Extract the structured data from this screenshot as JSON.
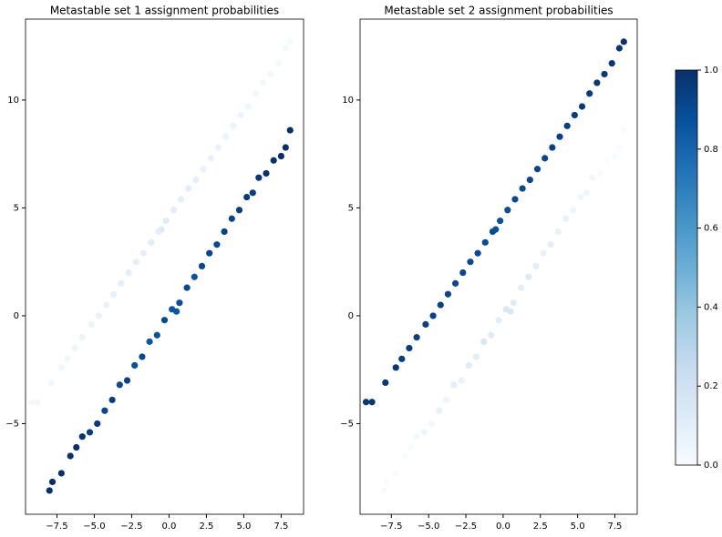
{
  "chart_data": [
    {
      "type": "scatter",
      "title": "Metastable set 1 assignment probabilities",
      "x": [
        -8,
        -7.8,
        -7.2,
        -6.6,
        -6.2,
        -5.8,
        -5.3,
        -4.8,
        -4.3,
        -3.8,
        -3.3,
        -2.8,
        -2.3,
        -1.8,
        -1.3,
        -0.8,
        -0.3,
        0.2,
        0.7,
        1.2,
        1.7,
        2.2,
        2.7,
        3.2,
        3.7,
        4.2,
        4.7,
        5.2,
        5.6,
        6,
        6.5,
        7,
        7.5,
        7.8,
        8.1,
        0.5,
        -9.2,
        -8.8,
        -7.9,
        -7.2,
        -6.8,
        -6.3,
        -5.8,
        -5.2,
        -4.7,
        -4.2,
        -3.7,
        -3.2,
        -2.7,
        -2.2,
        -1.7,
        -1.2,
        -0.7,
        -0.2,
        0.3,
        0.8,
        1.3,
        1.8,
        2.3,
        2.8,
        3.3,
        3.8,
        4.3,
        4.8,
        5.3,
        5.8,
        6.3,
        6.8,
        7.3,
        7.8,
        8.1,
        -0.5
      ],
      "y": [
        -8.1,
        -7.7,
        -7.3,
        -6.5,
        -6.1,
        -5.6,
        -5.4,
        -5.0,
        -4.4,
        -3.9,
        -3.2,
        -3.0,
        -2.3,
        -1.9,
        -1.2,
        -0.9,
        -0.2,
        0.3,
        0.6,
        1.3,
        1.8,
        2.3,
        2.9,
        3.3,
        3.9,
        4.5,
        4.9,
        5.5,
        5.7,
        6.4,
        6.6,
        7.2,
        7.4,
        7.8,
        8.6,
        0.2,
        -4.0,
        -4.0,
        -3.1,
        -2.4,
        -2.0,
        -1.5,
        -1.0,
        -0.4,
        0.0,
        0.5,
        1.0,
        1.5,
        2.0,
        2.5,
        2.9,
        3.4,
        3.9,
        4.4,
        4.9,
        5.4,
        5.9,
        6.3,
        6.8,
        7.3,
        7.8,
        8.3,
        8.8,
        9.3,
        9.7,
        10.3,
        10.8,
        11.2,
        11.7,
        12.4,
        12.7,
        4.0
      ],
      "c": [
        1,
        1,
        1,
        1,
        1,
        0.98,
        0.95,
        0.97,
        0.92,
        0.95,
        0.9,
        0.93,
        0.88,
        0.9,
        0.85,
        0.88,
        0.9,
        0.86,
        0.88,
        0.9,
        0.87,
        0.9,
        0.92,
        0.9,
        0.93,
        0.92,
        0.95,
        0.96,
        0.95,
        0.97,
        1,
        1,
        1,
        1,
        1,
        0.85,
        0.02,
        0.02,
        0.03,
        0.03,
        0.04,
        0.05,
        0.06,
        0.06,
        0.07,
        0.07,
        0.08,
        0.09,
        0.09,
        0.1,
        0.1,
        0.11,
        0.1,
        0.12,
        0.11,
        0.1,
        0.1,
        0.09,
        0.08,
        0.08,
        0.07,
        0.06,
        0.06,
        0.05,
        0.04,
        0.04,
        0.03,
        0.03,
        0.02,
        0.02,
        0.01,
        0.12
      ],
      "xlim": [
        -9.6,
        9.0
      ],
      "ylim": [
        -9.2,
        13.75
      ],
      "xticks": [
        {
          "value": -7.5,
          "label": "−7.5"
        },
        {
          "value": -5,
          "label": "−5.0"
        },
        {
          "value": -2.5,
          "label": "−2.5"
        },
        {
          "value": 0,
          "label": "0.0"
        },
        2.5,
        {
          "value": 5,
          "label": "5.0"
        },
        7.5
      ],
      "yticks": [
        {
          "value": -5,
          "label": "−5"
        },
        0,
        5,
        10
      ]
    },
    {
      "type": "scatter",
      "title": "Metastable set 2 assignment probabilities",
      "x": [
        -8,
        -7.8,
        -7.2,
        -6.6,
        -6.2,
        -5.8,
        -5.3,
        -4.8,
        -4.3,
        -3.8,
        -3.3,
        -2.8,
        -2.3,
        -1.8,
        -1.3,
        -0.8,
        -0.3,
        0.2,
        0.7,
        1.2,
        1.7,
        2.2,
        2.7,
        3.2,
        3.7,
        4.2,
        4.7,
        5.2,
        5.6,
        6,
        6.5,
        7,
        7.5,
        7.8,
        8.1,
        0.5,
        -9.2,
        -8.8,
        -7.9,
        -7.2,
        -6.8,
        -6.3,
        -5.8,
        -5.2,
        -4.7,
        -4.2,
        -3.7,
        -3.2,
        -2.7,
        -2.2,
        -1.7,
        -1.2,
        -0.7,
        -0.2,
        0.3,
        0.8,
        1.3,
        1.8,
        2.3,
        2.8,
        3.3,
        3.8,
        4.3,
        4.8,
        5.3,
        5.8,
        6.3,
        6.8,
        7.3,
        7.8,
        8.1,
        -0.5
      ],
      "y": [
        -8.1,
        -7.7,
        -7.3,
        -6.5,
        -6.1,
        -5.6,
        -5.4,
        -5.0,
        -4.4,
        -3.9,
        -3.2,
        -3.0,
        -2.3,
        -1.9,
        -1.2,
        -0.9,
        -0.2,
        0.3,
        0.6,
        1.3,
        1.8,
        2.3,
        2.9,
        3.3,
        3.9,
        4.5,
        4.9,
        5.5,
        5.7,
        6.4,
        6.6,
        7.2,
        7.4,
        7.8,
        8.6,
        0.2,
        -4.0,
        -4.0,
        -3.1,
        -2.4,
        -2.0,
        -1.5,
        -1.0,
        -0.4,
        0.0,
        0.5,
        1.0,
        1.5,
        2.0,
        2.5,
        2.9,
        3.4,
        3.9,
        4.4,
        4.9,
        5.4,
        5.9,
        6.3,
        6.8,
        7.3,
        7.8,
        8.3,
        8.8,
        9.3,
        9.7,
        10.3,
        10.8,
        11.2,
        11.7,
        12.4,
        12.7,
        4.0
      ],
      "c": [
        0,
        0,
        0,
        0,
        0,
        0.02,
        0.05,
        0.03,
        0.08,
        0.05,
        0.1,
        0.07,
        0.12,
        0.1,
        0.15,
        0.12,
        0.1,
        0.14,
        0.12,
        0.1,
        0.13,
        0.1,
        0.08,
        0.1,
        0.07,
        0.08,
        0.05,
        0.04,
        0.05,
        0.03,
        0,
        0,
        0,
        0,
        0,
        0.15,
        0.98,
        0.98,
        0.97,
        0.97,
        0.96,
        0.95,
        0.94,
        0.94,
        0.93,
        0.93,
        0.92,
        0.91,
        0.91,
        0.9,
        0.9,
        0.89,
        0.9,
        0.88,
        0.89,
        0.9,
        0.9,
        0.91,
        0.92,
        0.92,
        0.93,
        0.94,
        0.94,
        0.95,
        0.96,
        0.96,
        0.97,
        0.97,
        0.98,
        0.98,
        0.99,
        0.88
      ],
      "xlim": [
        -9.6,
        9.0
      ],
      "ylim": [
        -9.2,
        13.75
      ],
      "xticks": [
        {
          "value": -7.5,
          "label": "−7.5"
        },
        {
          "value": -5,
          "label": "−5.0"
        },
        {
          "value": -2.5,
          "label": "−2.5"
        },
        {
          "value": 0,
          "label": "0.0"
        },
        2.5,
        {
          "value": 5,
          "label": "5.0"
        },
        7.5
      ],
      "yticks": [
        {
          "value": -5,
          "label": "−5"
        },
        0,
        5,
        10
      ]
    },
    {
      "type": "colorbar",
      "ylim": [
        0,
        1
      ],
      "yticks": [
        {
          "value": 0,
          "label": "0.0"
        },
        {
          "value": 0.2,
          "label": "0.2"
        },
        {
          "value": 0.4,
          "label": "0.4"
        },
        {
          "value": 0.6,
          "label": "0.6"
        },
        {
          "value": 0.8,
          "label": "0.8"
        },
        {
          "value": 1,
          "label": "1.0"
        }
      ],
      "colormap": [
        "#f7fbff",
        "#deebf7",
        "#c6dbef",
        "#9ecae1",
        "#6baed6",
        "#4292c6",
        "#2171b5",
        "#08519c",
        "#08306b"
      ]
    }
  ]
}
